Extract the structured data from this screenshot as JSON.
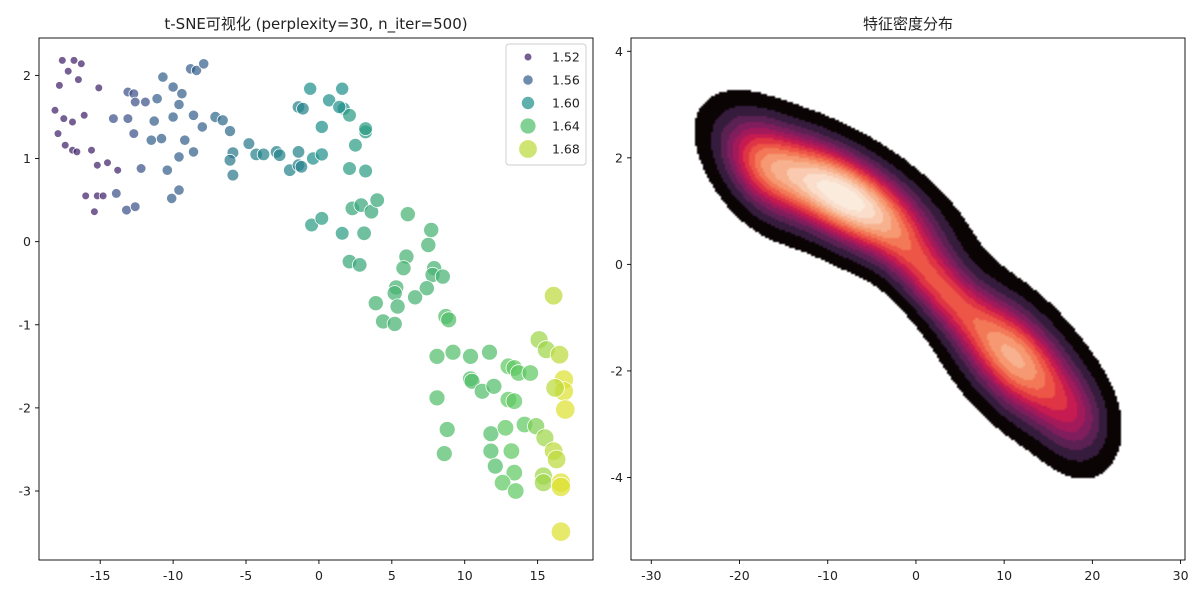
{
  "chart_data": [
    {
      "type": "scatter",
      "title": "t-SNE可视化 (perplexity=30, n_iter=500)",
      "xlabel": "",
      "ylabel": "",
      "xlim": [
        -19.2,
        18.8
      ],
      "ylim": [
        -3.83,
        2.45
      ],
      "x_ticks": [
        -15,
        -10,
        -5,
        0,
        5,
        10,
        15
      ],
      "y_ticks": [
        -3,
        -2,
        -1,
        0,
        1,
        2
      ],
      "hue_range": [
        1.5,
        1.7
      ],
      "legend_placement": "top-right",
      "legend": [
        {
          "label": "1.52",
          "value": 1.52
        },
        {
          "label": "1.56",
          "value": 1.56
        },
        {
          "label": "1.60",
          "value": 1.6
        },
        {
          "label": "1.64",
          "value": 1.64
        },
        {
          "label": "1.68",
          "value": 1.68
        }
      ],
      "palette": [
        "#440154",
        "#3b528b",
        "#21918c",
        "#5ec962",
        "#fde725"
      ],
      "points": [
        [
          -17.6,
          2.18,
          1.52
        ],
        [
          -16.8,
          2.18,
          1.52
        ],
        [
          -16.3,
          2.14,
          1.52
        ],
        [
          -17.2,
          2.05,
          1.52
        ],
        [
          -16.5,
          1.95,
          1.52
        ],
        [
          -17.8,
          1.88,
          1.52
        ],
        [
          -15.1,
          1.85,
          1.52
        ],
        [
          -18.1,
          1.58,
          1.52
        ],
        [
          -16.1,
          1.52,
          1.52
        ],
        [
          -17.5,
          1.48,
          1.52
        ],
        [
          -16.9,
          1.44,
          1.52
        ],
        [
          -17.9,
          1.3,
          1.52
        ],
        [
          -17.4,
          1.16,
          1.52
        ],
        [
          -16.9,
          1.1,
          1.52
        ],
        [
          -16.6,
          1.08,
          1.52
        ],
        [
          -15.6,
          1.1,
          1.52
        ],
        [
          -15.2,
          0.92,
          1.52
        ],
        [
          -14.5,
          0.95,
          1.52
        ],
        [
          -13.8,
          0.86,
          1.52
        ],
        [
          -15.2,
          0.55,
          1.52
        ],
        [
          -16.0,
          0.55,
          1.52
        ],
        [
          -15.4,
          0.36,
          1.52
        ],
        [
          -14.8,
          0.55,
          1.52
        ],
        [
          -13.1,
          1.8,
          1.55
        ],
        [
          -12.7,
          1.78,
          1.55
        ],
        [
          -11.9,
          1.68,
          1.55
        ],
        [
          -12.6,
          1.68,
          1.55
        ],
        [
          -11.1,
          1.72,
          1.56
        ],
        [
          -10.7,
          1.98,
          1.56
        ],
        [
          -10.0,
          1.86,
          1.56
        ],
        [
          -8.8,
          2.08,
          1.56
        ],
        [
          -8.4,
          2.06,
          1.56
        ],
        [
          -7.9,
          2.14,
          1.56
        ],
        [
          -9.4,
          1.78,
          1.56
        ],
        [
          -9.6,
          1.65,
          1.56
        ],
        [
          -8.6,
          1.52,
          1.56
        ],
        [
          -10.0,
          1.5,
          1.56
        ],
        [
          -9.2,
          1.22,
          1.56
        ],
        [
          -11.3,
          1.45,
          1.56
        ],
        [
          -13.1,
          1.48,
          1.55
        ],
        [
          -14.1,
          1.48,
          1.55
        ],
        [
          -12.7,
          1.3,
          1.55
        ],
        [
          -11.5,
          1.22,
          1.56
        ],
        [
          -12.2,
          0.88,
          1.55
        ],
        [
          -10.8,
          1.24,
          1.56
        ],
        [
          -8.0,
          1.38,
          1.56
        ],
        [
          -8.6,
          1.08,
          1.56
        ],
        [
          -9.6,
          1.02,
          1.56
        ],
        [
          -10.4,
          0.86,
          1.56
        ],
        [
          -13.2,
          0.38,
          1.55
        ],
        [
          -12.6,
          0.42,
          1.55
        ],
        [
          -13.9,
          0.58,
          1.55
        ],
        [
          -10.1,
          0.52,
          1.56
        ],
        [
          -9.6,
          0.62,
          1.56
        ],
        [
          -7.1,
          1.5,
          1.57
        ],
        [
          -6.6,
          1.46,
          1.57
        ],
        [
          -6.1,
          1.33,
          1.57
        ],
        [
          -5.9,
          1.07,
          1.58
        ],
        [
          -6.1,
          0.98,
          1.58
        ],
        [
          -5.9,
          0.8,
          1.58
        ],
        [
          -4.8,
          1.18,
          1.58
        ],
        [
          -4.3,
          1.05,
          1.59
        ],
        [
          -3.8,
          1.05,
          1.59
        ],
        [
          -2.9,
          1.08,
          1.59
        ],
        [
          -2.7,
          1.04,
          1.59
        ],
        [
          -2.0,
          0.86,
          1.59
        ],
        [
          -1.4,
          0.92,
          1.59
        ],
        [
          -1.2,
          0.9,
          1.59
        ],
        [
          -1.4,
          1.08,
          1.59
        ],
        [
          -0.4,
          1.0,
          1.6
        ],
        [
          0.2,
          1.05,
          1.6
        ],
        [
          -1.4,
          1.62,
          1.59
        ],
        [
          -1.1,
          1.6,
          1.59
        ],
        [
          -0.6,
          1.84,
          1.6
        ],
        [
          0.7,
          1.7,
          1.6
        ],
        [
          1.6,
          1.84,
          1.6
        ],
        [
          1.7,
          1.6,
          1.6
        ],
        [
          2.1,
          1.52,
          1.61
        ],
        [
          1.4,
          1.62,
          1.6
        ],
        [
          0.2,
          1.38,
          1.6
        ],
        [
          2.5,
          1.16,
          1.61
        ],
        [
          3.2,
          1.32,
          1.61
        ],
        [
          3.2,
          1.36,
          1.61
        ],
        [
          2.1,
          0.88,
          1.61
        ],
        [
          3.2,
          0.85,
          1.61
        ],
        [
          -0.5,
          0.2,
          1.61
        ],
        [
          0.2,
          0.28,
          1.61
        ],
        [
          1.6,
          0.1,
          1.61
        ],
        [
          2.3,
          0.4,
          1.62
        ],
        [
          2.9,
          0.44,
          1.62
        ],
        [
          3.6,
          0.36,
          1.62
        ],
        [
          4.0,
          0.5,
          1.62
        ],
        [
          3.1,
          0.1,
          1.62
        ],
        [
          2.1,
          -0.24,
          1.62
        ],
        [
          2.8,
          -0.28,
          1.62
        ],
        [
          6.1,
          0.33,
          1.63
        ],
        [
          7.5,
          -0.04,
          1.63
        ],
        [
          7.7,
          0.14,
          1.63
        ],
        [
          6.0,
          -0.18,
          1.63
        ],
        [
          5.8,
          -0.32,
          1.63
        ],
        [
          7.9,
          -0.32,
          1.63
        ],
        [
          7.8,
          -0.4,
          1.63
        ],
        [
          8.5,
          -0.42,
          1.63
        ],
        [
          7.4,
          -0.56,
          1.63
        ],
        [
          5.3,
          -0.55,
          1.63
        ],
        [
          5.2,
          -0.62,
          1.63
        ],
        [
          6.6,
          -0.67,
          1.63
        ],
        [
          5.4,
          -0.78,
          1.63
        ],
        [
          3.9,
          -0.74,
          1.63
        ],
        [
          4.4,
          -0.96,
          1.63
        ],
        [
          5.2,
          -0.99,
          1.63
        ],
        [
          8.7,
          -0.9,
          1.64
        ],
        [
          8.9,
          -0.94,
          1.64
        ],
        [
          8.1,
          -1.38,
          1.64
        ],
        [
          9.2,
          -1.33,
          1.64
        ],
        [
          10.4,
          -1.38,
          1.64
        ],
        [
          11.7,
          -1.33,
          1.64
        ],
        [
          13.0,
          -1.5,
          1.65
        ],
        [
          13.4,
          -1.52,
          1.65
        ],
        [
          13.7,
          -1.58,
          1.65
        ],
        [
          14.5,
          -1.58,
          1.65
        ],
        [
          10.4,
          -1.65,
          1.64
        ],
        [
          10.5,
          -1.68,
          1.64
        ],
        [
          11.2,
          -1.8,
          1.64
        ],
        [
          12.0,
          -1.74,
          1.64
        ],
        [
          13.0,
          -1.9,
          1.65
        ],
        [
          13.4,
          -1.92,
          1.65
        ],
        [
          8.1,
          -1.88,
          1.64
        ],
        [
          8.8,
          -2.26,
          1.64
        ],
        [
          8.6,
          -2.55,
          1.64
        ],
        [
          11.8,
          -2.31,
          1.64
        ],
        [
          12.8,
          -2.24,
          1.65
        ],
        [
          14.1,
          -2.2,
          1.65
        ],
        [
          14.9,
          -2.22,
          1.66
        ],
        [
          11.8,
          -2.52,
          1.64
        ],
        [
          13.2,
          -2.52,
          1.65
        ],
        [
          12.1,
          -2.7,
          1.64
        ],
        [
          13.4,
          -2.78,
          1.65
        ],
        [
          12.6,
          -2.9,
          1.65
        ],
        [
          13.5,
          -3.0,
          1.65
        ],
        [
          15.1,
          -1.18,
          1.67
        ],
        [
          15.6,
          -1.3,
          1.67
        ],
        [
          16.1,
          -0.65,
          1.68
        ],
        [
          16.5,
          -1.36,
          1.68
        ],
        [
          16.8,
          -1.66,
          1.69
        ],
        [
          16.8,
          -1.8,
          1.69
        ],
        [
          16.2,
          -1.76,
          1.68
        ],
        [
          16.9,
          -2.02,
          1.69
        ],
        [
          15.5,
          -2.36,
          1.67
        ],
        [
          16.1,
          -2.52,
          1.68
        ],
        [
          16.3,
          -2.62,
          1.68
        ],
        [
          15.4,
          -2.82,
          1.67
        ],
        [
          15.4,
          -2.9,
          1.67
        ],
        [
          16.6,
          -2.9,
          1.69
        ],
        [
          16.6,
          -2.95,
          1.69
        ],
        [
          16.6,
          -3.49,
          1.69
        ]
      ]
    },
    {
      "type": "density",
      "title": "特征密度分布",
      "xlabel": "",
      "ylabel": "",
      "xlim": [
        -32.3,
        30.5
      ],
      "ylim": [
        -5.55,
        4.25
      ],
      "x_ticks": [
        -30,
        -20,
        -10,
        0,
        10,
        20,
        30
      ],
      "y_ticks": [
        -4,
        -2,
        0,
        2,
        4
      ],
      "colormap": [
        "#0b0405",
        "#2e1a36",
        "#50224f",
        "#7a1f5d",
        "#a11a5b",
        "#cb1b4f",
        "#e83f3f",
        "#f26c4f",
        "#f6966f",
        "#f8b896",
        "#fad9c4",
        "#faebdd"
      ],
      "components": [
        {
          "cx": -8.5,
          "cy": 1.3,
          "sx": 6.0,
          "sy": 0.7,
          "rho": -0.65,
          "w": 1.0
        },
        {
          "cx": 11.5,
          "cy": -1.8,
          "sx": 4.2,
          "sy": 0.75,
          "rho": -0.55,
          "w": 0.72
        },
        {
          "cx": 2.5,
          "cy": -0.4,
          "sx": 4.0,
          "sy": 0.7,
          "rho": -0.75,
          "w": 0.45
        },
        {
          "cx": -17.5,
          "cy": 1.8,
          "sx": 3.0,
          "sy": 0.6,
          "rho": -0.4,
          "w": 0.35
        },
        {
          "cx": 18.0,
          "cy": -2.9,
          "sx": 2.5,
          "sy": 0.55,
          "rho": -0.2,
          "w": 0.22
        }
      ]
    }
  ]
}
